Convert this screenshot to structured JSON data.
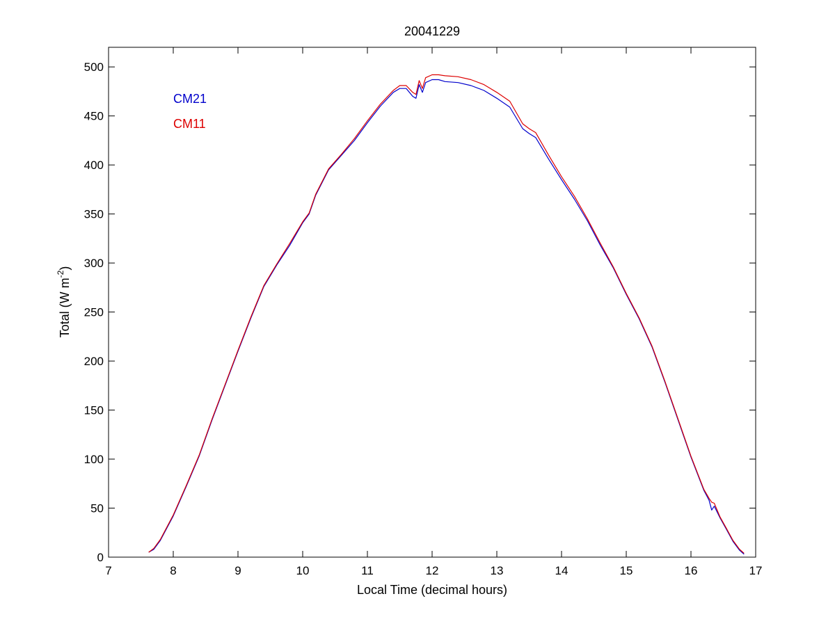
{
  "chart_data": {
    "type": "line",
    "title": "20041229",
    "xlabel": "Local Time (decimal hours)",
    "ylabel": "Total (W m",
    "ylabel_sup": "-2",
    "ylabel_end": ")",
    "xlim": [
      7,
      17
    ],
    "ylim": [
      0,
      520
    ],
    "xticks": [
      "7",
      "8",
      "9",
      "10",
      "11",
      "12",
      "13",
      "14",
      "15",
      "16",
      "17"
    ],
    "yticks": [
      "0",
      "50",
      "100",
      "150",
      "200",
      "250",
      "300",
      "350",
      "400",
      "450",
      "500"
    ],
    "grid": false,
    "legend_placement": "top-left",
    "series": [
      {
        "name": "CM21",
        "color": "#0000cc",
        "x": [
          7.62,
          7.7,
          7.8,
          8.0,
          8.2,
          8.4,
          8.6,
          8.8,
          9.0,
          9.2,
          9.4,
          9.6,
          9.8,
          10.0,
          10.1,
          10.2,
          10.4,
          10.6,
          10.8,
          11.0,
          11.2,
          11.4,
          11.5,
          11.6,
          11.7,
          11.75,
          11.8,
          11.85,
          11.9,
          12.0,
          12.1,
          12.2,
          12.4,
          12.6,
          12.8,
          13.0,
          13.2,
          13.4,
          13.5,
          13.6,
          13.8,
          14.0,
          14.2,
          14.4,
          14.6,
          14.8,
          15.0,
          15.2,
          15.4,
          15.6,
          15.8,
          16.0,
          16.2,
          16.28,
          16.32,
          16.36,
          16.45,
          16.55,
          16.65,
          16.75,
          16.82
        ],
        "values": [
          5,
          8,
          17,
          42,
          72,
          103,
          140,
          175,
          210,
          244,
          276,
          298,
          318,
          341,
          350,
          369,
          395,
          410,
          425,
          443,
          460,
          474,
          478,
          478,
          470,
          468,
          482,
          474,
          484,
          487,
          487,
          485,
          484,
          481,
          476,
          468,
          459,
          437,
          432,
          428,
          406,
          385,
          365,
          343,
          318,
          295,
          268,
          243,
          214,
          178,
          140,
          102,
          68,
          58,
          48,
          52,
          40,
          28,
          16,
          7,
          3
        ]
      },
      {
        "name": "CM11",
        "color": "#dd0000",
        "x": [
          7.62,
          7.7,
          7.8,
          8.0,
          8.2,
          8.4,
          8.6,
          8.8,
          9.0,
          9.2,
          9.4,
          9.6,
          9.8,
          10.0,
          10.1,
          10.2,
          10.4,
          10.6,
          10.8,
          11.0,
          11.2,
          11.4,
          11.5,
          11.6,
          11.7,
          11.75,
          11.8,
          11.85,
          11.9,
          12.0,
          12.1,
          12.2,
          12.4,
          12.6,
          12.8,
          13.0,
          13.2,
          13.4,
          13.5,
          13.6,
          13.8,
          14.0,
          14.2,
          14.4,
          14.6,
          14.8,
          15.0,
          15.2,
          15.4,
          15.6,
          15.8,
          16.0,
          16.2,
          16.28,
          16.32,
          16.36,
          16.45,
          16.55,
          16.65,
          16.75,
          16.82
        ],
        "values": [
          5,
          9,
          18,
          43,
          73,
          104,
          141,
          176,
          211,
          245,
          277,
          299,
          320,
          342,
          351,
          370,
          396,
          411,
          427,
          445,
          462,
          476,
          481,
          481,
          474,
          472,
          486,
          478,
          489,
          492,
          492,
          491,
          490,
          487,
          482,
          474,
          465,
          442,
          437,
          433,
          410,
          388,
          368,
          345,
          320,
          296,
          269,
          244,
          215,
          179,
          141,
          103,
          69,
          60,
          56,
          55,
          41,
          29,
          17,
          8,
          4
        ]
      }
    ]
  }
}
